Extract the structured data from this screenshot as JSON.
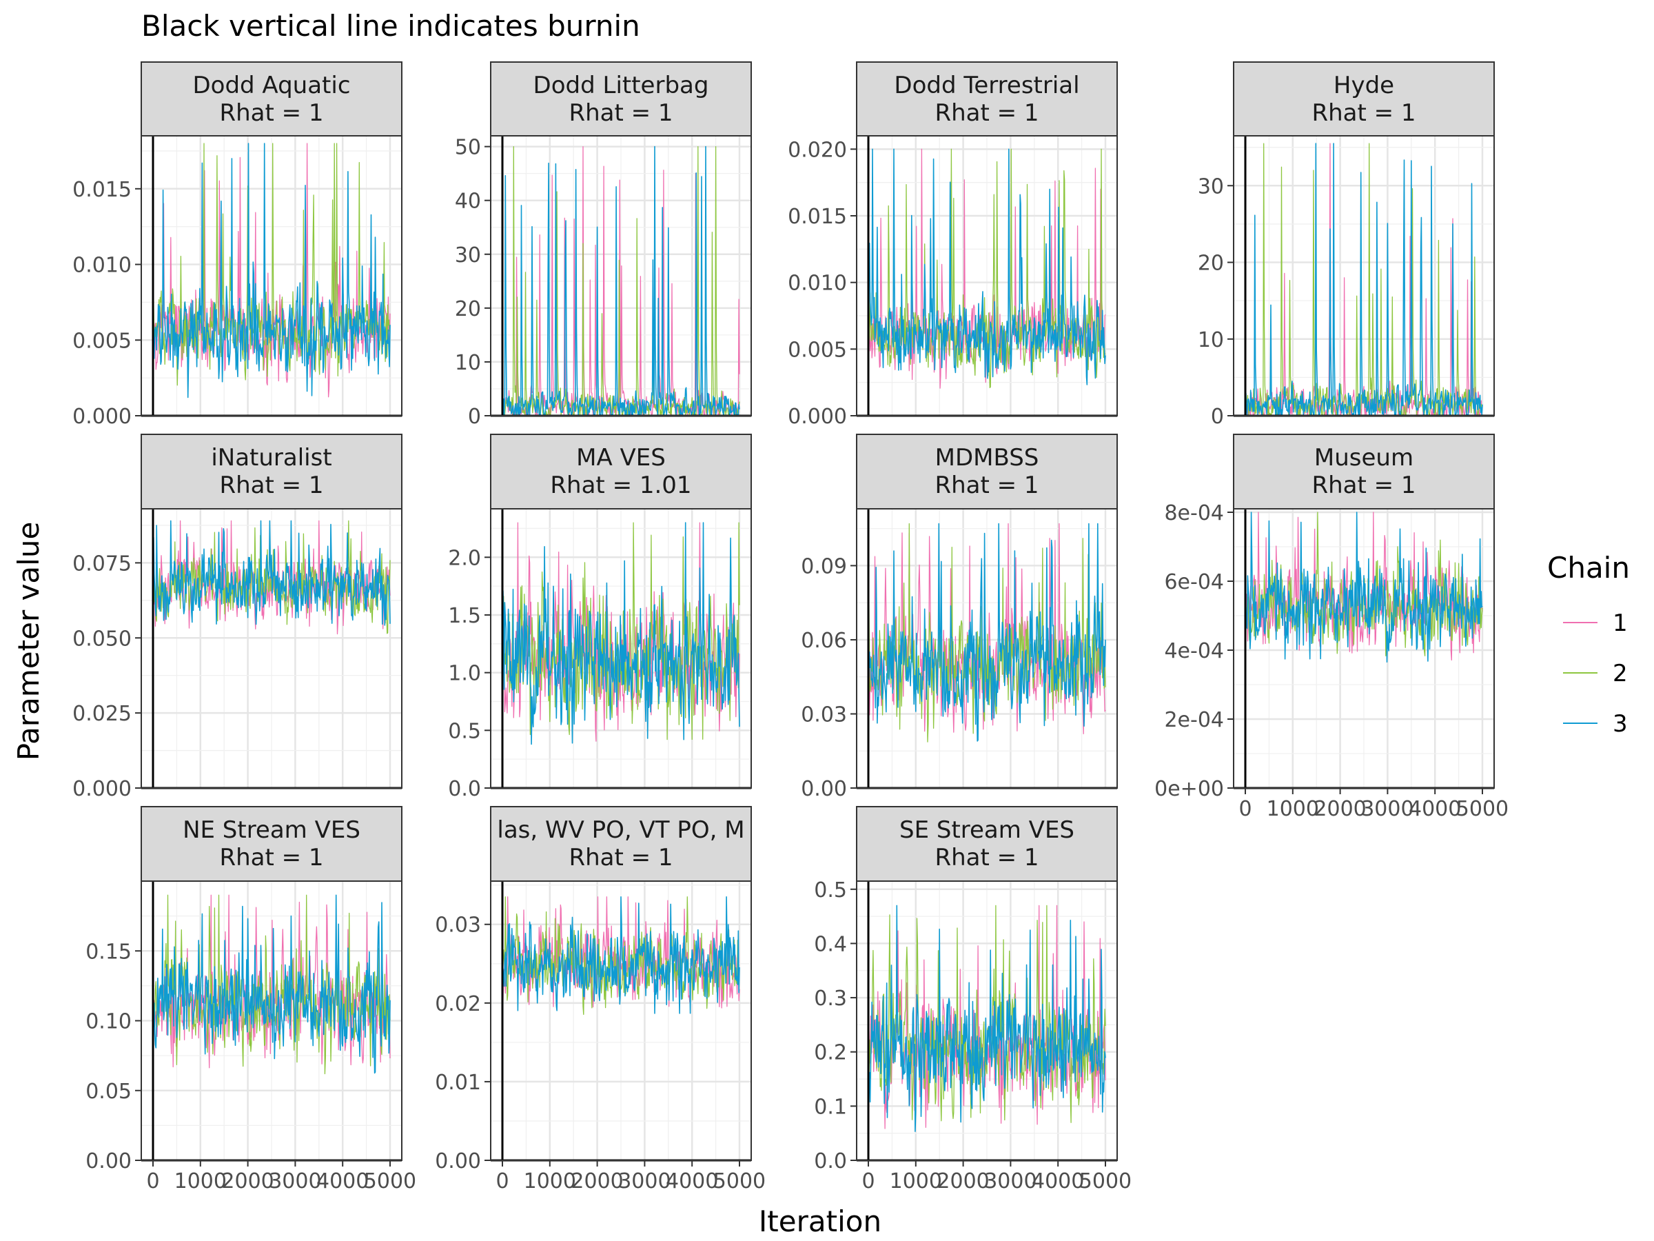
{
  "chart_data": {
    "type": "line",
    "title": "Black vertical line indicates burnin",
    "xlabel": "Iteration",
    "ylabel": "Parameter value",
    "burnin": 0,
    "x_range": [
      0,
      5000
    ],
    "x_ticks": [
      0,
      1000,
      2000,
      3000,
      4000,
      5000
    ],
    "grid": true,
    "legend": {
      "title": "Chain",
      "position": "right",
      "items": [
        {
          "label": "1",
          "color": "#F06FB0"
        },
        {
          "label": "2",
          "color": "#8DC63F"
        },
        {
          "label": "3",
          "color": "#0E9BD2"
        }
      ]
    },
    "panels": [
      {
        "name": "Dodd Aquatic",
        "rhat": "Rhat = 1",
        "ylim": [
          0,
          0.0185
        ],
        "yticks": [
          0,
          0.005,
          0.01,
          0.015
        ],
        "ytick_labels": [
          "0.000",
          "0.005",
          "0.010",
          "0.015"
        ],
        "center": 0.0055,
        "spread": 0.0014,
        "max_peak": 0.018
      },
      {
        "name": "Dodd Litterbag",
        "rhat": "Rhat = 1",
        "ylim": [
          0,
          52
        ],
        "yticks": [
          0,
          10,
          20,
          30,
          40,
          50
        ],
        "ytick_labels": [
          "0",
          "10",
          "20",
          "30",
          "40",
          "50"
        ],
        "center": 1.5,
        "spread": 1.5,
        "max_peak": 50
      },
      {
        "name": "Dodd Terrestrial",
        "rhat": "Rhat = 1",
        "ylim": [
          0,
          0.021
        ],
        "yticks": [
          0,
          0.005,
          0.01,
          0.015,
          0.02
        ],
        "ytick_labels": [
          "0.000",
          "0.005",
          "0.010",
          "0.015",
          "0.020"
        ],
        "center": 0.0058,
        "spread": 0.0014,
        "max_peak": 0.02
      },
      {
        "name": "Hyde",
        "rhat": "Rhat = 1",
        "ylim": [
          0,
          36.5
        ],
        "yticks": [
          0,
          10,
          20,
          30
        ],
        "ytick_labels": [
          "0",
          "10",
          "20",
          "30"
        ],
        "center": 1.5,
        "spread": 1.3,
        "max_peak": 35.5
      },
      {
        "name": "iNaturalist",
        "rhat": "Rhat = 1",
        "ylim": [
          0,
          0.093
        ],
        "yticks": [
          0,
          0.025,
          0.05,
          0.075
        ],
        "ytick_labels": [
          "0.000",
          "0.025",
          "0.050",
          "0.075"
        ],
        "center": 0.066,
        "spread": 0.0055,
        "max_peak": 0.089
      },
      {
        "name": "MA VES",
        "rhat": "Rhat = 1.01",
        "ylim": [
          0,
          2.42
        ],
        "yticks": [
          0,
          0.5,
          1,
          1.5,
          2
        ],
        "ytick_labels": [
          "0.0",
          "0.5",
          "1.0",
          "1.5",
          "2.0"
        ],
        "center": 1.1,
        "spread": 0.28,
        "max_peak": 2.3
      },
      {
        "name": "MDMBSS",
        "rhat": "Rhat = 1",
        "ylim": [
          0,
          0.113
        ],
        "yticks": [
          0,
          0.03,
          0.06,
          0.09
        ],
        "ytick_labels": [
          "0.00",
          "0.03",
          "0.06",
          "0.09"
        ],
        "center": 0.048,
        "spread": 0.011,
        "max_peak": 0.107
      },
      {
        "name": "Museum",
        "rhat": "Rhat = 1",
        "ylim": [
          0,
          0.00081
        ],
        "yticks": [
          0,
          0.0002,
          0.0004,
          0.0006,
          0.0008
        ],
        "ytick_labels": [
          "0e+00",
          "2e-04",
          "4e-04",
          "6e-04",
          "8e-04"
        ],
        "center": 0.00052,
        "spread": 6e-05,
        "max_peak": 0.0008
      },
      {
        "name": "NE Stream VES",
        "rhat": "Rhat = 1",
        "ylim": [
          0,
          0.2
        ],
        "yticks": [
          0,
          0.05,
          0.1,
          0.15
        ],
        "ytick_labels": [
          "0.00",
          "0.05",
          "0.10",
          "0.15"
        ],
        "center": 0.11,
        "spread": 0.018,
        "max_peak": 0.19
      },
      {
        "name": "las, WV PO, VT PO, M",
        "rhat": "Rhat = 1",
        "ylim": [
          0,
          0.0355
        ],
        "yticks": [
          0,
          0.01,
          0.02,
          0.03
        ],
        "ytick_labels": [
          "0.00",
          "0.01",
          "0.02",
          "0.03"
        ],
        "center": 0.0245,
        "spread": 0.0024,
        "max_peak": 0.0335
      },
      {
        "name": "SE Stream VES",
        "rhat": "Rhat = 1",
        "ylim": [
          0,
          0.515
        ],
        "yticks": [
          0,
          0.1,
          0.2,
          0.3,
          0.4,
          0.5
        ],
        "ytick_labels": [
          "0.0",
          "0.1",
          "0.2",
          "0.3",
          "0.4",
          "0.5"
        ],
        "center": 0.2,
        "spread": 0.055,
        "max_peak": 0.47
      }
    ]
  }
}
